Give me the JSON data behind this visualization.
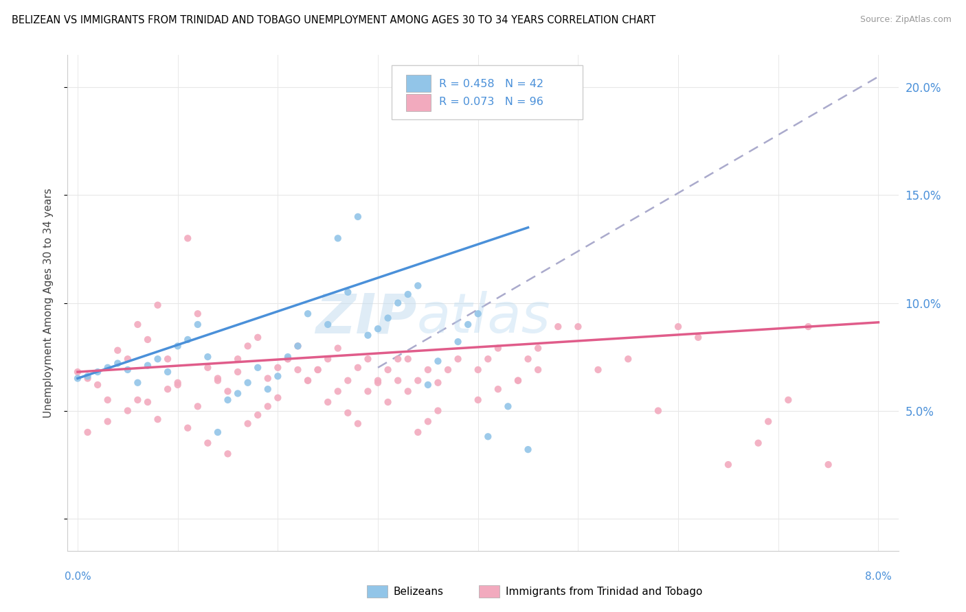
{
  "title": "BELIZEAN VS IMMIGRANTS FROM TRINIDAD AND TOBAGO UNEMPLOYMENT AMONG AGES 30 TO 34 YEARS CORRELATION CHART",
  "source": "Source: ZipAtlas.com",
  "ylabel": "Unemployment Among Ages 30 to 34 years",
  "right_yticklabels": [
    "5.0%",
    "10.0%",
    "15.0%",
    "20.0%"
  ],
  "right_yticks": [
    0.05,
    0.1,
    0.15,
    0.2
  ],
  "xlim": [
    0.0,
    0.08
  ],
  "ylim": [
    -0.015,
    0.215
  ],
  "blue_color": "#92C5E8",
  "pink_color": "#F2AABE",
  "blue_line_color": "#4A90D9",
  "pink_line_color": "#E05C8A",
  "gray_dashed_color": "#AAAACC",
  "legend_label1": "Belizeans",
  "legend_label2": "Immigrants from Trinidad and Tobago",
  "watermark": "ZIPatlas",
  "blue_R": 0.458,
  "blue_N": 42,
  "pink_R": 0.073,
  "pink_N": 96,
  "blue_trend_x": [
    0.0,
    0.045
  ],
  "blue_trend_y": [
    0.065,
    0.135
  ],
  "pink_trend_x": [
    0.0,
    0.08
  ],
  "pink_trend_y": [
    0.068,
    0.091
  ],
  "gray_trend_x": [
    0.03,
    0.08
  ],
  "gray_trend_y": [
    0.07,
    0.205
  ],
  "blue_x": [
    0.0,
    0.001,
    0.002,
    0.003,
    0.004,
    0.005,
    0.006,
    0.007,
    0.008,
    0.009,
    0.01,
    0.011,
    0.012,
    0.013,
    0.014,
    0.015,
    0.016,
    0.017,
    0.018,
    0.019,
    0.02,
    0.021,
    0.022,
    0.023,
    0.025,
    0.026,
    0.027,
    0.028,
    0.029,
    0.03,
    0.031,
    0.032,
    0.033,
    0.034,
    0.035,
    0.036,
    0.038,
    0.039,
    0.04,
    0.041,
    0.043,
    0.045
  ],
  "blue_y": [
    0.065,
    0.066,
    0.068,
    0.07,
    0.072,
    0.069,
    0.063,
    0.071,
    0.074,
    0.068,
    0.08,
    0.083,
    0.09,
    0.075,
    0.04,
    0.055,
    0.058,
    0.063,
    0.07,
    0.06,
    0.066,
    0.075,
    0.08,
    0.095,
    0.09,
    0.13,
    0.105,
    0.14,
    0.085,
    0.088,
    0.093,
    0.1,
    0.104,
    0.108,
    0.062,
    0.073,
    0.082,
    0.09,
    0.095,
    0.038,
    0.052,
    0.032
  ],
  "pink_x": [
    0.0,
    0.001,
    0.002,
    0.003,
    0.004,
    0.005,
    0.006,
    0.007,
    0.008,
    0.009,
    0.01,
    0.011,
    0.012,
    0.013,
    0.014,
    0.015,
    0.016,
    0.017,
    0.018,
    0.019,
    0.02,
    0.021,
    0.022,
    0.023,
    0.024,
    0.025,
    0.026,
    0.027,
    0.028,
    0.029,
    0.03,
    0.031,
    0.032,
    0.033,
    0.034,
    0.035,
    0.036,
    0.037,
    0.038,
    0.04,
    0.041,
    0.042,
    0.044,
    0.045,
    0.046,
    0.048,
    0.001,
    0.003,
    0.005,
    0.006,
    0.007,
    0.008,
    0.009,
    0.01,
    0.011,
    0.012,
    0.013,
    0.014,
    0.015,
    0.016,
    0.017,
    0.018,
    0.019,
    0.02,
    0.021,
    0.022,
    0.023,
    0.024,
    0.025,
    0.026,
    0.027,
    0.028,
    0.029,
    0.03,
    0.031,
    0.032,
    0.033,
    0.034,
    0.035,
    0.036,
    0.04,
    0.042,
    0.044,
    0.046,
    0.05,
    0.052,
    0.055,
    0.058,
    0.06,
    0.062,
    0.065,
    0.068,
    0.069,
    0.071,
    0.073,
    0.075
  ],
  "pink_y": [
    0.068,
    0.065,
    0.062,
    0.055,
    0.078,
    0.074,
    0.09,
    0.083,
    0.099,
    0.074,
    0.063,
    0.13,
    0.095,
    0.07,
    0.064,
    0.059,
    0.074,
    0.08,
    0.084,
    0.065,
    0.07,
    0.074,
    0.08,
    0.064,
    0.069,
    0.074,
    0.079,
    0.064,
    0.07,
    0.074,
    0.063,
    0.069,
    0.074,
    0.059,
    0.064,
    0.069,
    0.063,
    0.069,
    0.074,
    0.069,
    0.074,
    0.079,
    0.064,
    0.074,
    0.079,
    0.089,
    0.04,
    0.045,
    0.05,
    0.055,
    0.054,
    0.046,
    0.06,
    0.062,
    0.042,
    0.052,
    0.035,
    0.065,
    0.03,
    0.068,
    0.044,
    0.048,
    0.052,
    0.056,
    0.074,
    0.069,
    0.064,
    0.069,
    0.054,
    0.059,
    0.049,
    0.044,
    0.059,
    0.064,
    0.054,
    0.064,
    0.074,
    0.04,
    0.045,
    0.05,
    0.055,
    0.06,
    0.064,
    0.069,
    0.089,
    0.069,
    0.074,
    0.05,
    0.089,
    0.084,
    0.025,
    0.035,
    0.045,
    0.055,
    0.089,
    0.025
  ]
}
